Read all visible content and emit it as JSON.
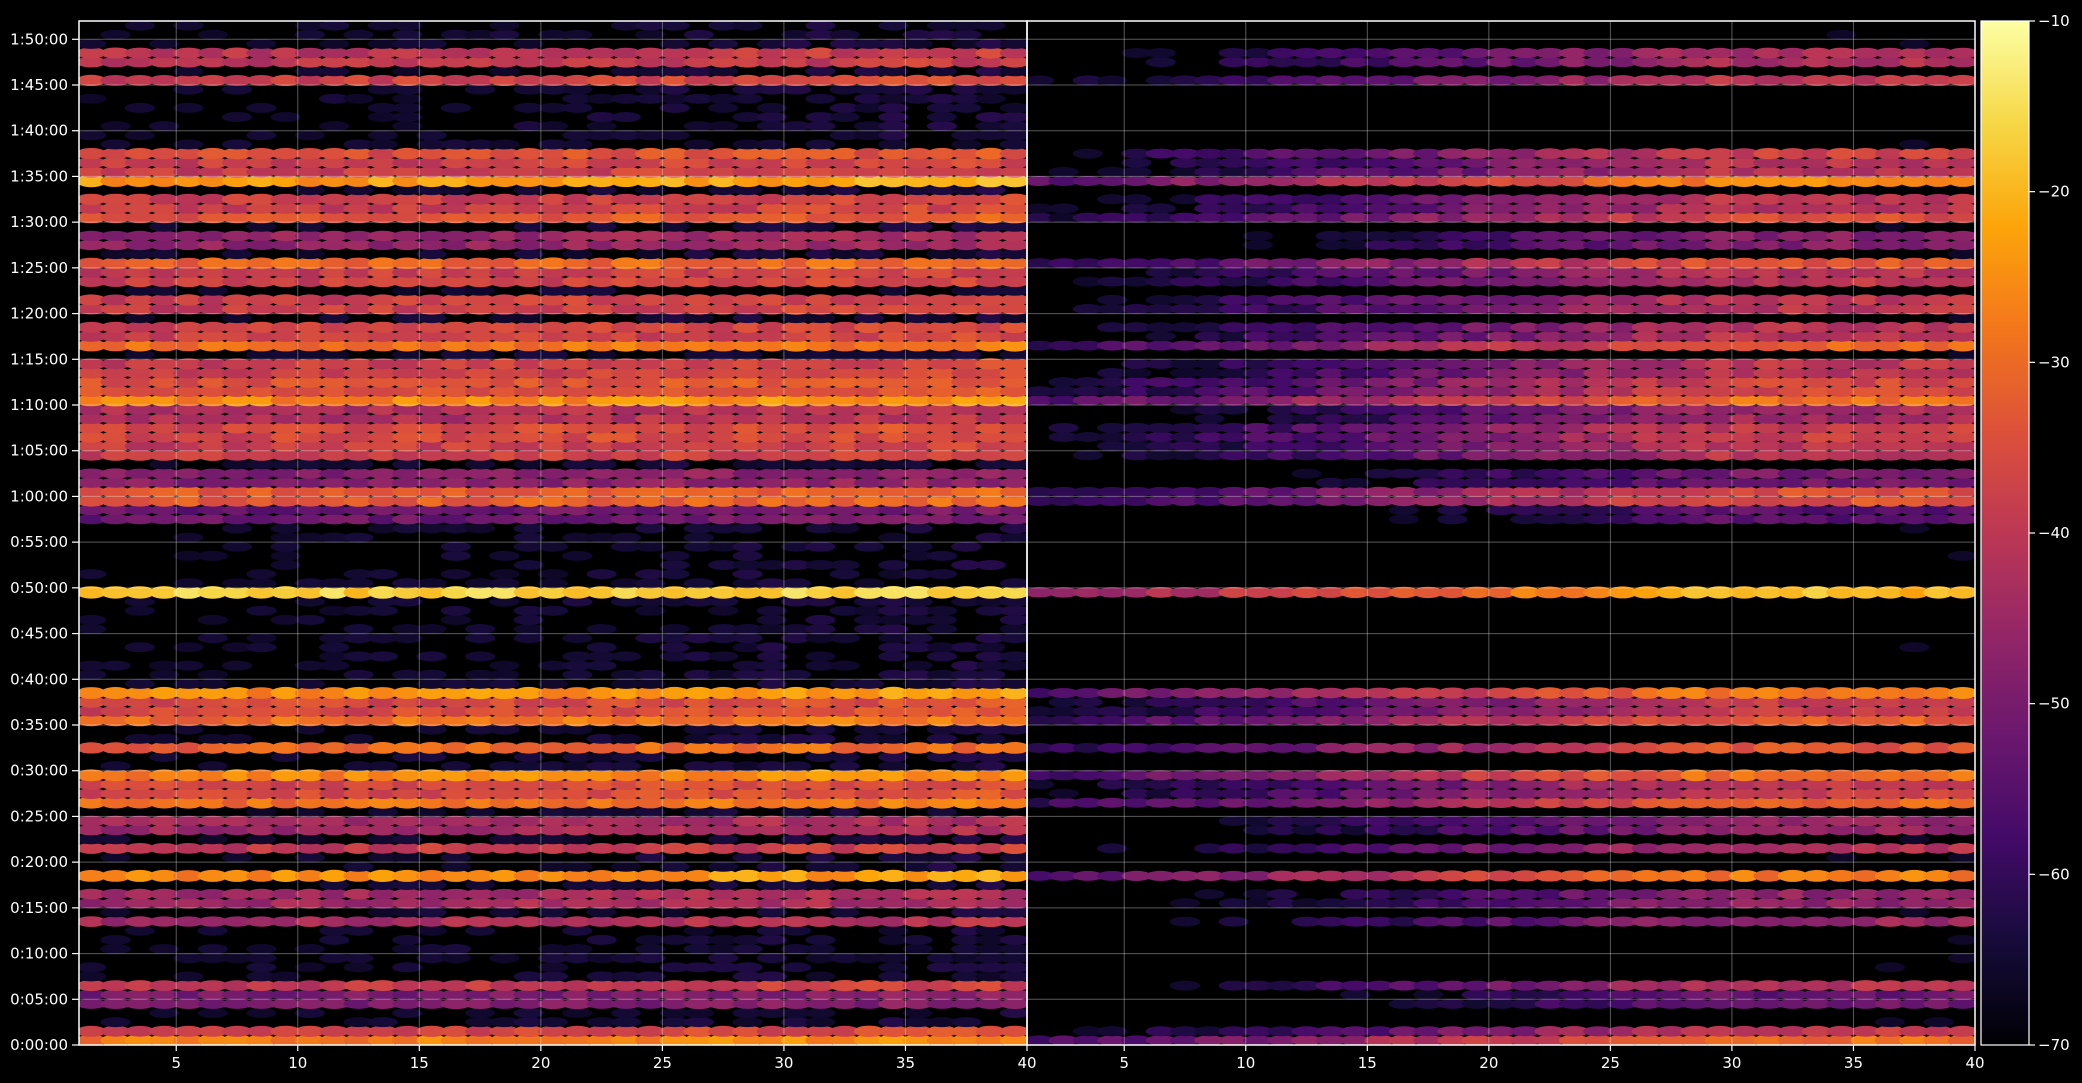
{
  "chart_data": {
    "type": "heatmap",
    "title": "",
    "colormap": "inferno",
    "background_color": "#000000",
    "axis_color": "#ffffff",
    "grid": true,
    "grid_color": "#ffffff",
    "panels": [
      {
        "name": "",
        "x_range": [
          1,
          40
        ],
        "x_ticks": [
          5,
          10,
          15,
          20,
          25,
          30,
          35,
          40
        ],
        "x_tick_labels": [
          "5",
          "10",
          "15",
          "20",
          "25",
          "30",
          "35",
          "40"
        ],
        "brightness": "high"
      },
      {
        "name": "",
        "x_range": [
          1,
          40
        ],
        "x_ticks": [
          5,
          10,
          15,
          20,
          25,
          30,
          35,
          40
        ],
        "x_tick_labels": [
          "5",
          "10",
          "15",
          "20",
          "25",
          "30",
          "35",
          "40"
        ],
        "brightness": "low"
      }
    ],
    "y_axis": {
      "label": "",
      "range_seconds": [
        0,
        6720
      ],
      "tick_labels": [
        "0:00:00",
        "0:05:00",
        "0:10:00",
        "0:15:00",
        "0:20:00",
        "0:25:00",
        "0:30:00",
        "0:35:00",
        "0:40:00",
        "0:45:00",
        "0:50:00",
        "0:55:00",
        "1:00:00",
        "1:05:00",
        "1:10:00",
        "1:15:00",
        "1:20:00",
        "1:25:00",
        "1:30:00",
        "1:35:00",
        "1:40:00",
        "1:45:00",
        "1:50:00"
      ]
    },
    "colorbar": {
      "range": [
        -70,
        -10
      ],
      "tick_values": [
        -10,
        -20,
        -30,
        -40,
        -50,
        -60,
        -70
      ],
      "tick_labels": [
        "−10",
        "−20",
        "−30",
        "−40",
        "−50",
        "−60",
        "−70"
      ]
    },
    "x_bins": 39,
    "time_bins": 112,
    "hot_rows_minutes": [
      0.5,
      1.5,
      5.0,
      6.5,
      13.5,
      16.0,
      18.5,
      21.5,
      24.0,
      26.5,
      28.0,
      29.5,
      32.5,
      35.5,
      37.0,
      38.5,
      49.5,
      58.0,
      60.0,
      62.0,
      65.0,
      67.0,
      69.0,
      70.5,
      72.0,
      74.0,
      76.5,
      78.0,
      81.0,
      84.0,
      85.5,
      88.0,
      90.5,
      92.0,
      94.5,
      96.0,
      97.5,
      105.5,
      108.0
    ],
    "band_levels_dB": [
      -28,
      -38,
      -42,
      -40,
      -44,
      -36,
      -26,
      -40,
      -36,
      -30,
      -28,
      -27,
      -32,
      -30,
      -28,
      -26,
      -18,
      -44,
      -24,
      -40,
      -30,
      -28,
      -34,
      -27,
      -26,
      -30,
      -30,
      -30,
      -30,
      -30,
      -32,
      -38,
      -34,
      -30,
      -24,
      -30,
      -36,
      -38,
      -32
    ]
  }
}
